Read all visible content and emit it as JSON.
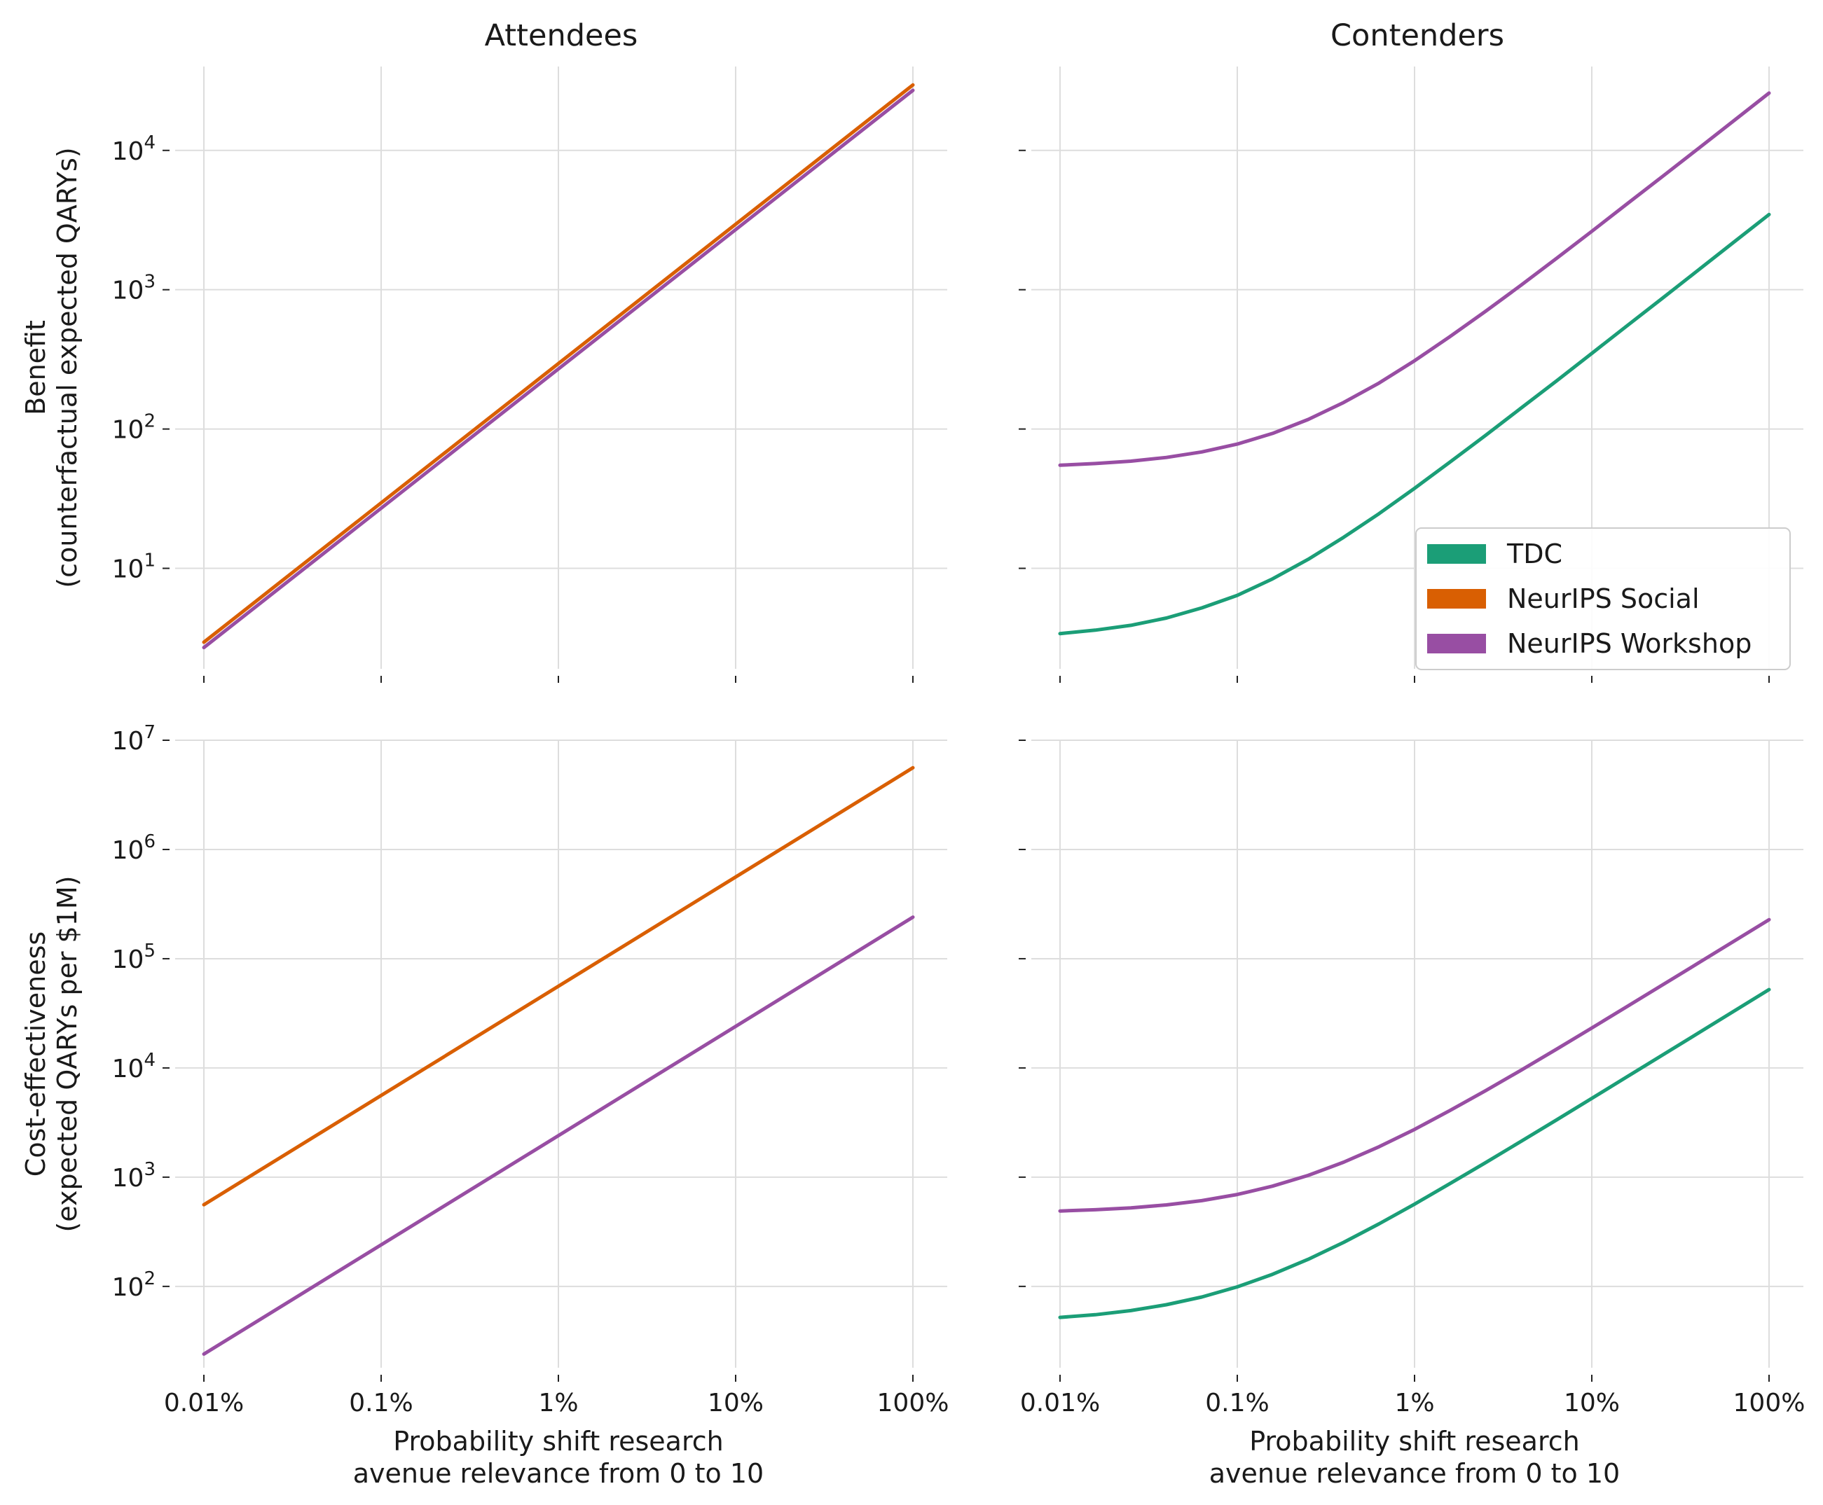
{
  "chart_data": {
    "type": "line",
    "x_scale": "log",
    "y_scale": "log",
    "x_ticks": [
      0.0001,
      0.001,
      0.01,
      0.1,
      1
    ],
    "x_tick_labels": [
      "0.01%",
      "0.1%",
      "1%",
      "10%",
      "100%"
    ],
    "xlabel_lines": [
      "Probability shift research",
      "avenue relevance from 0 to 10"
    ],
    "column_titles": [
      "Attendees",
      "Contenders"
    ],
    "row_ylabels": [
      [
        "Benefit",
        "(counterfactual expected QARYs)"
      ],
      [
        "Cost-effectiveness",
        "(expected QARYs per $1M)"
      ]
    ],
    "colors": {
      "TDC": "#1b9e77",
      "NeurIPS Social": "#d95f02",
      "NeurIPS Workshop": "#984ea3"
    },
    "grid": true,
    "legend": {
      "placement": "right, in Benefit/Contenders panel",
      "entries": [
        "TDC",
        "NeurIPS Social",
        "NeurIPS Workshop"
      ]
    },
    "panels": [
      {
        "row": 0,
        "col": 0,
        "ylim": [
          1.9,
          40000
        ],
        "y_ticks": [
          10,
          100,
          1000,
          10000
        ],
        "y_tick_base": "10",
        "y_tick_exponents": [
          "1",
          "2",
          "3",
          "4"
        ],
        "series": [
          {
            "name": "NeurIPS Social",
            "x": [
              0.0001,
              1
            ],
            "y": [
              2.95,
              29500
            ]
          },
          {
            "name": "NeurIPS Workshop",
            "x": [
              0.0001,
              1
            ],
            "y": [
              2.7,
              27000
            ]
          }
        ]
      },
      {
        "row": 0,
        "col": 1,
        "ylim": [
          1.9,
          40000
        ],
        "y_ticks": [
          10,
          100,
          1000,
          10000
        ],
        "series": [
          {
            "name": "TDC",
            "x": [
              0.0001,
              0.000158,
              0.000251,
              0.000398,
              0.000631,
              0.001,
              0.00158,
              0.00251,
              0.00398,
              0.00631,
              0.01,
              0.0158,
              0.0251,
              0.0398,
              0.0631,
              0.1,
              0.158,
              0.251,
              0.398,
              0.631,
              1
            ],
            "y": [
              3.4,
              3.6,
              3.9,
              4.4,
              5.2,
              6.4,
              8.4,
              11.6,
              16.7,
              24.7,
              37.5,
              57.8,
              89.8,
              141,
              221,
              349,
              551,
              871,
              1381,
              2188,
              3467
            ]
          },
          {
            "name": "NeurIPS Workshop",
            "x": [
              0.0001,
              0.000158,
              0.000251,
              0.000398,
              0.000631,
              0.001,
              0.00158,
              0.00251,
              0.00398,
              0.00631,
              0.01,
              0.0158,
              0.0251,
              0.0398,
              0.0631,
              0.1,
              0.158,
              0.251,
              0.398,
              0.631,
              1
            ],
            "y": [
              55,
              56.5,
              58.8,
              62.5,
              68.5,
              78,
              93,
              117,
              155,
              214,
              309,
              460,
              698,
              1076,
              1675,
              2625,
              4131,
              6515,
              10294,
              16285,
              25780
            ]
          }
        ]
      },
      {
        "row": 1,
        "col": 0,
        "ylim": [
          18,
          10000000
        ],
        "y_ticks": [
          100,
          1000,
          10000,
          100000,
          1000000,
          10000000
        ],
        "y_tick_base": "10",
        "y_tick_exponents": [
          "2",
          "3",
          "4",
          "5",
          "6",
          "7"
        ],
        "series": [
          {
            "name": "NeurIPS Social",
            "x": [
              0.0001,
              1
            ],
            "y": [
              560,
              5600000
            ]
          },
          {
            "name": "NeurIPS Workshop",
            "x": [
              0.0001,
              1
            ],
            "y": [
              24,
              240000
            ]
          }
        ]
      },
      {
        "row": 1,
        "col": 1,
        "ylim": [
          18,
          10000000
        ],
        "y_ticks": [
          100,
          1000,
          10000,
          100000,
          1000000,
          10000000
        ],
        "series": [
          {
            "name": "TDC",
            "x": [
              0.0001,
              0.000158,
              0.000251,
              0.000398,
              0.000631,
              0.001,
              0.00158,
              0.00251,
              0.00398,
              0.00631,
              0.01,
              0.0158,
              0.0251,
              0.0398,
              0.0631,
              0.1,
              0.158,
              0.251,
              0.398,
              0.631,
              1
            ],
            "y": [
              52,
              55,
              60,
              68,
              80,
              99,
              129,
              177,
              253,
              374,
              566,
              871,
              1355,
              2121,
              3335,
              5259,
              8309,
              13143,
              20804,
              32948,
              52200
            ]
          },
          {
            "name": "NeurIPS Workshop",
            "x": [
              0.0001,
              0.000158,
              0.000251,
              0.000398,
              0.000631,
              0.001,
              0.00158,
              0.00251,
              0.00398,
              0.00631,
              0.01,
              0.0158,
              0.0251,
              0.0398,
              0.0631,
              0.1,
              0.158,
              0.251,
              0.398,
              0.631,
              1
            ],
            "y": [
              490,
              503,
              524,
              557,
              610,
              694,
              827,
              1037,
              1371,
              1900,
              2738,
              4067,
              6174,
              9513,
              14806,
              23195,
              36492,
              57568,
              90973,
              143918,
              227835
            ]
          }
        ]
      }
    ]
  }
}
